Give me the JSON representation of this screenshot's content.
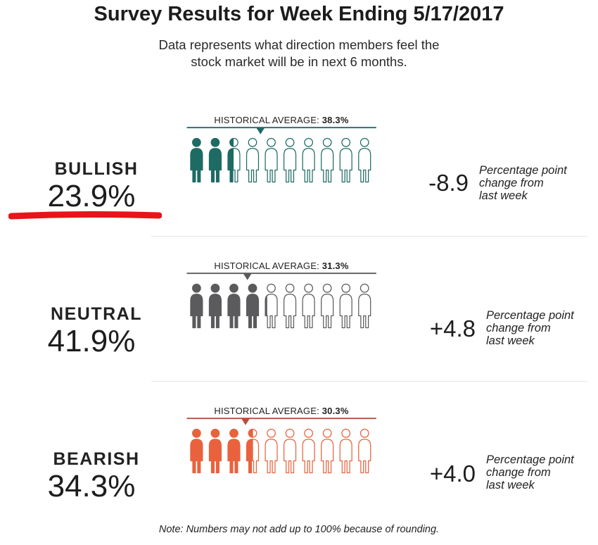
{
  "title": "Survey Results for Week Ending 5/17/2017",
  "subtitle_line1": "Data represents what direction members feel the",
  "subtitle_line2": "stock market will be in next 6 months.",
  "chart_data": {
    "type": "pictograph",
    "title": "Survey Results for Week Ending 5/17/2017",
    "icon_count": 10,
    "series": [
      {
        "label": "BULLISH",
        "value_text": "23.9%",
        "value": 23.9,
        "historical_prefix": "HISTORICAL AVERAGE: ",
        "historical_text": "38.3%",
        "historical": 38.3,
        "change_text": "-8.9",
        "change": -8.9,
        "color": "#1e6b64"
      },
      {
        "label": "NEUTRAL",
        "value_text": "41.9%",
        "value": 41.9,
        "historical_prefix": "HISTORICAL AVERAGE: ",
        "historical_text": "31.3%",
        "historical": 31.3,
        "change_text": "+4.8",
        "change": 4.8,
        "color": "#5b5b5d"
      },
      {
        "label": "BEARISH",
        "value_text": "34.3%",
        "value": 34.3,
        "historical_prefix": "HISTORICAL AVERAGE: ",
        "historical_text": "30.3%",
        "historical": 30.3,
        "change_text": "+4.0",
        "change": 4.0,
        "color": "#e9623d",
        "label_color": "#c05a42",
        "line_color": "#b2503c"
      }
    ],
    "change_note_line1": "Percentage point",
    "change_note_line2": "change from",
    "change_note_line3": "last week",
    "underline_color": "#e8141a"
  },
  "note": "Note: Numbers may not add up to 100% because of rounding."
}
